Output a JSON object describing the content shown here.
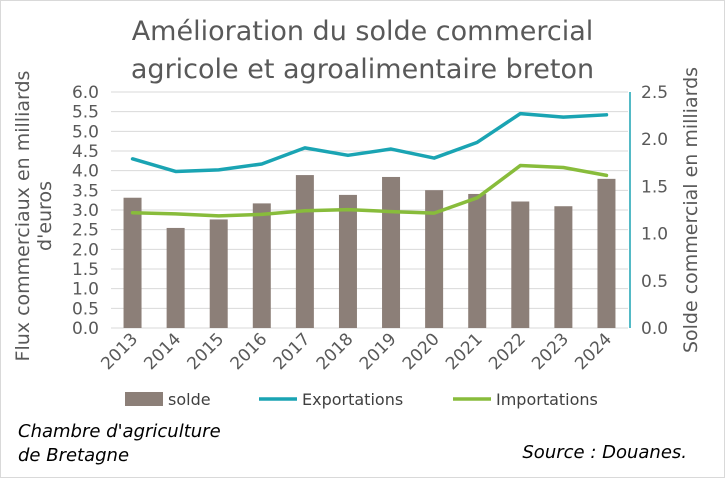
{
  "chart_data": {
    "type": "bar",
    "title_line1": "Amélioration du solde commercial",
    "title_line2": "agricole et agroalimentaire breton",
    "categories": [
      "2013",
      "2014",
      "2015",
      "2016",
      "2017",
      "2018",
      "2019",
      "2020",
      "2021",
      "2022",
      "2023",
      "2024"
    ],
    "left_axis": {
      "label_line1": "Flux commerciaux en milliards",
      "label_line2": "d'euros",
      "min": 0,
      "max": 6.0,
      "step": 0.5,
      "ticks": [
        "0.0",
        "0.5",
        "1.0",
        "1.5",
        "2.0",
        "2.5",
        "3.0",
        "3.5",
        "4.0",
        "4.5",
        "5.0",
        "5.5",
        "6.0"
      ]
    },
    "right_axis": {
      "label": "Solde commercial en milliards",
      "min": 0,
      "max": 2.5,
      "step": 0.5,
      "ticks": [
        "0.0",
        "0.5",
        "1.0",
        "1.5",
        "2.0",
        "2.5"
      ]
    },
    "series": [
      {
        "name": "solde",
        "kind": "bar",
        "axis": "right",
        "color": "#8c7f78",
        "values": [
          1.38,
          1.06,
          1.15,
          1.32,
          1.62,
          1.41,
          1.6,
          1.46,
          1.42,
          1.34,
          1.29,
          1.58
        ]
      },
      {
        "name": "Exportations",
        "kind": "line",
        "axis": "left",
        "color": "#1aa4b3",
        "values": [
          4.3,
          3.98,
          4.02,
          4.17,
          4.58,
          4.39,
          4.55,
          4.32,
          4.72,
          5.45,
          5.36,
          5.42
        ]
      },
      {
        "name": "Importations",
        "kind": "line",
        "axis": "left",
        "color": "#88bc3b",
        "values": [
          2.93,
          2.9,
          2.85,
          2.89,
          2.98,
          3.01,
          2.96,
          2.92,
          3.31,
          4.13,
          4.08,
          3.88
        ]
      }
    ],
    "legend_position": "bottom",
    "grid": true
  },
  "footer": {
    "source_org_line1": "Chambre d'agriculture",
    "source_org_line2": "de Bretagne",
    "source": "Source : Douanes."
  }
}
